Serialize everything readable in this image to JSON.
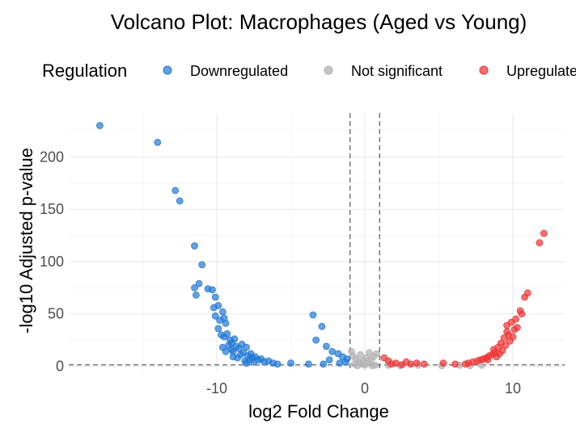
{
  "chart_data": {
    "type": "scatter",
    "title": "Volcano Plot: Macrophages (Aged vs Young)",
    "xlabel": "log2 Fold Change",
    "ylabel": "-log10 Adjusted p-value",
    "xlim": [
      -20,
      13.5
    ],
    "ylim": [
      -5,
      242
    ],
    "x_ticks": [
      -10,
      0,
      10
    ],
    "y_ticks": [
      0,
      50,
      100,
      150,
      200
    ],
    "grid": true,
    "legend": {
      "title": "Regulation",
      "position": "top",
      "entries": [
        {
          "label": "Downregulated",
          "color": "#1F77D4"
        },
        {
          "label": "Not significant",
          "color": "#B4B4B4"
        },
        {
          "label": "Upregulated",
          "color": "#EE3333"
        }
      ]
    },
    "thresholds": {
      "fold_change": [
        -1,
        1
      ],
      "neg_log10_p": 1.3
    },
    "series": [
      {
        "name": "Downregulated",
        "color": "#1F77D4",
        "points": [
          [
            -17.9,
            230
          ],
          [
            -14.0,
            214
          ],
          [
            -12.8,
            168
          ],
          [
            -12.5,
            158
          ],
          [
            -11.5,
            115
          ],
          [
            -11.0,
            97
          ],
          [
            -11.2,
            79
          ],
          [
            -11.5,
            75
          ],
          [
            -11.4,
            68
          ],
          [
            -10.6,
            74
          ],
          [
            -10.3,
            73
          ],
          [
            -10.1,
            66
          ],
          [
            -10.2,
            56
          ],
          [
            -9.9,
            58
          ],
          [
            -10.1,
            48
          ],
          [
            -9.8,
            44
          ],
          [
            -9.6,
            52
          ],
          [
            -9.5,
            46
          ],
          [
            -9.4,
            41
          ],
          [
            -9.9,
            36
          ],
          [
            -9.7,
            30
          ],
          [
            -9.5,
            28
          ],
          [
            -9.3,
            31
          ],
          [
            -9.1,
            25
          ],
          [
            -9.0,
            22
          ],
          [
            -9.2,
            20
          ],
          [
            -8.8,
            26
          ],
          [
            -8.7,
            19
          ],
          [
            -8.9,
            14
          ],
          [
            -8.5,
            17
          ],
          [
            -8.3,
            21
          ],
          [
            -8.2,
            13
          ],
          [
            -8.0,
            18
          ],
          [
            -7.9,
            10
          ],
          [
            -7.7,
            12
          ],
          [
            -7.6,
            8
          ],
          [
            -7.4,
            9
          ],
          [
            -7.2,
            6
          ],
          [
            -7.0,
            7
          ],
          [
            -6.8,
            4
          ],
          [
            -6.5,
            5
          ],
          [
            -6.2,
            3
          ],
          [
            -5.9,
            2
          ],
          [
            -5.0,
            3
          ],
          [
            -3.8,
            2
          ],
          [
            -9.4,
            14
          ],
          [
            -8.6,
            8
          ],
          [
            -8.1,
            5
          ],
          [
            -8.4,
            11
          ],
          [
            -9.6,
            18
          ],
          [
            -7.5,
            4
          ],
          [
            -7.8,
            6
          ],
          [
            -8.9,
            9
          ],
          [
            -9.0,
            16
          ],
          [
            -8.0,
            3
          ],
          [
            -3.5,
            49
          ],
          [
            -2.9,
            38
          ],
          [
            -3.3,
            25
          ],
          [
            -2.6,
            19
          ],
          [
            -2.2,
            14
          ],
          [
            -1.8,
            12
          ],
          [
            -1.5,
            9
          ],
          [
            -2.4,
            6
          ],
          [
            -1.3,
            4
          ],
          [
            -2.8,
            2
          ],
          [
            -1.7,
            3
          ],
          [
            -1.2,
            7
          ]
        ]
      },
      {
        "name": "Not significant",
        "color": "#B4B4B4",
        "points": [
          [
            -0.8,
            10
          ],
          [
            -0.6,
            7
          ],
          [
            -0.4,
            4
          ],
          [
            -0.2,
            2
          ],
          [
            0.0,
            1
          ],
          [
            0.2,
            3
          ],
          [
            0.4,
            6
          ],
          [
            0.6,
            9
          ],
          [
            0.8,
            12
          ],
          [
            -0.9,
            14
          ],
          [
            -0.3,
            11
          ],
          [
            0.3,
            13
          ],
          [
            -0.7,
            2
          ],
          [
            0.7,
            1
          ],
          [
            0.1,
            8
          ],
          [
            -0.5,
            0.5
          ],
          [
            0.5,
            0.5
          ],
          [
            -0.1,
            5
          ],
          [
            1.6,
            1
          ],
          [
            2.4,
            0.5
          ],
          [
            3.6,
            1
          ],
          [
            5.2,
            0.5
          ],
          [
            6.4,
            1
          ],
          [
            7.1,
            0.5
          ],
          [
            7.9,
            1
          ]
        ]
      },
      {
        "name": "Upregulated",
        "color": "#EE3333",
        "points": [
          [
            12.1,
            127
          ],
          [
            11.8,
            118
          ],
          [
            11.0,
            70
          ],
          [
            10.8,
            66
          ],
          [
            10.5,
            53
          ],
          [
            10.6,
            50
          ],
          [
            10.2,
            45
          ],
          [
            9.9,
            42
          ],
          [
            9.6,
            39
          ],
          [
            10.1,
            35
          ],
          [
            9.7,
            30
          ],
          [
            9.4,
            27
          ],
          [
            9.8,
            24
          ],
          [
            9.2,
            22
          ],
          [
            9.0,
            18
          ],
          [
            9.3,
            15
          ],
          [
            8.8,
            13
          ],
          [
            8.6,
            11
          ],
          [
            8.9,
            9
          ],
          [
            8.4,
            10
          ],
          [
            8.2,
            8
          ],
          [
            8.0,
            7
          ],
          [
            7.8,
            6
          ],
          [
            7.6,
            5
          ],
          [
            7.3,
            4
          ],
          [
            7.0,
            3
          ],
          [
            6.8,
            2
          ],
          [
            6.1,
            2
          ],
          [
            5.3,
            3
          ],
          [
            4.0,
            2
          ],
          [
            3.5,
            3
          ],
          [
            2.8,
            4
          ],
          [
            2.1,
            3
          ],
          [
            1.6,
            5
          ],
          [
            1.3,
            8
          ],
          [
            1.8,
            2
          ],
          [
            2.5,
            1.5
          ],
          [
            3.1,
            2
          ],
          [
            9.5,
            20
          ],
          [
            10.3,
            37
          ],
          [
            8.7,
            16
          ],
          [
            9.1,
            12
          ],
          [
            8.3,
            6
          ],
          [
            10.0,
            28
          ],
          [
            9.6,
            33
          ]
        ]
      }
    ]
  }
}
